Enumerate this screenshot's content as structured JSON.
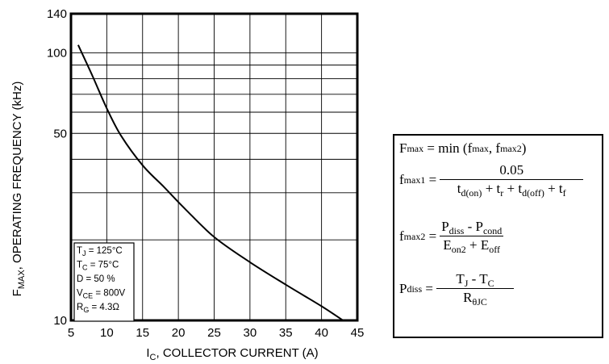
{
  "chart_data": {
    "type": "line",
    "title": "",
    "xlabel_main": "I",
    "xlabel_sub": "C",
    "xlabel_rest": ", COLLECTOR CURRENT (A)",
    "ylabel_main": "F",
    "ylabel_sub": "MAX",
    "ylabel_rest": ", OPERATING FREQUENCY (kHz)",
    "x_ticks": [
      "5",
      "10",
      "15",
      "20",
      "25",
      "30",
      "35",
      "40",
      "45"
    ],
    "y_ticks": [
      {
        "value": 10,
        "label": "10"
      },
      {
        "value": 50,
        "label": "50"
      },
      {
        "value": 100,
        "label": "100"
      },
      {
        "value": 140,
        "label": "140"
      }
    ],
    "xlim": [
      5,
      45
    ],
    "ylim": [
      10,
      140
    ],
    "y_scale": "log",
    "grid": true,
    "series": [
      {
        "x": [
          6,
          8,
          10,
          12,
          15,
          18,
          21,
          25,
          30,
          35,
          40,
          43
        ],
        "y": [
          107,
          82,
          62,
          49,
          38,
          31.5,
          26,
          20.5,
          16.5,
          13.6,
          11.3,
          10
        ]
      }
    ],
    "conditions": [
      {
        "main": "T",
        "sub": "J",
        "rest": " = 125°C"
      },
      {
        "main": "T",
        "sub": "C",
        "rest": " = 75°C"
      },
      {
        "main": "D = 50 %",
        "sub": "",
        "rest": ""
      },
      {
        "main": "V",
        "sub": "CE",
        "rest": " = 800V"
      },
      {
        "main": "R",
        "sub": "G",
        "rest": " = 4.3Ω"
      }
    ]
  },
  "equations": {
    "fmax_lhs": "F",
    "fmax_lhs_sub": "max",
    "fmax_rhs_a": " = min (f",
    "fmax_rhs_sub1": "max",
    "fmax_rhs_b": ", f",
    "fmax_rhs_sub2": "max2",
    "fmax_rhs_c": ")",
    "f1_lhs": "f",
    "f1_lhs_sub": "max1",
    "f1_num": "0.05",
    "f1_den_t1": "t",
    "f1_den_t1_sub": "d(on)",
    "f1_den_plus1": " + t",
    "f1_den_t2_sub": "r",
    "f1_den_plus2": " + t",
    "f1_den_t3_sub": "d(off)",
    "f1_den_plus3": " + t",
    "f1_den_t4_sub": "f",
    "f2_lhs": "f",
    "f2_lhs_sub": "max2",
    "f2_num_a": "P",
    "f2_num_a_sub": "diss",
    "f2_num_minus": " - P",
    "f2_num_b_sub": "cond",
    "f2_den_a": "E",
    "f2_den_a_sub": "on2",
    "f2_den_plus": " + E",
    "f2_den_b_sub": "off",
    "p_lhs": "P",
    "p_lhs_sub": "diss",
    "p_num_a": "T",
    "p_num_a_sub": "J",
    "p_num_minus": " - T",
    "p_num_b_sub": "C",
    "p_den": "R",
    "p_den_sub": "θJC",
    "eq": " ="
  }
}
